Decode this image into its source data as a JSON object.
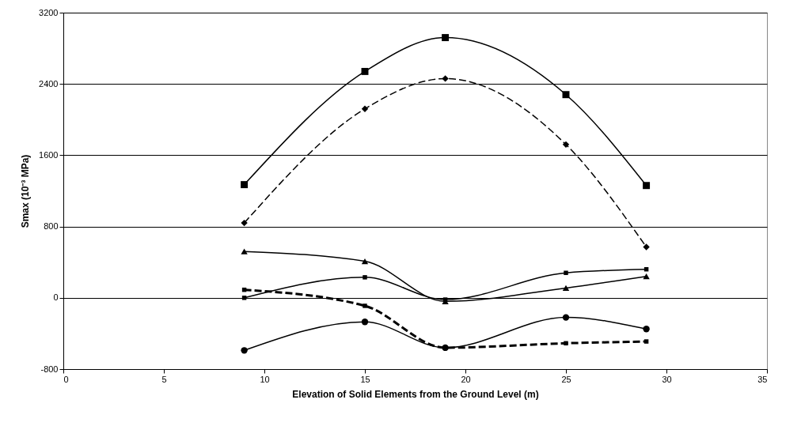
{
  "chart_data": {
    "type": "line",
    "xlabel": "Elevation of Solid Elements from the Ground Level (m)",
    "ylabel": "Smax (10⁻³ MPa)",
    "x": [
      9,
      15,
      19,
      25,
      29
    ],
    "xlim": [
      0,
      35
    ],
    "xticks": [
      0,
      5,
      10,
      15,
      20,
      25,
      30,
      35
    ],
    "ylim": [
      -800,
      3200
    ],
    "yticks": [
      -800,
      0,
      800,
      1600,
      2400,
      3200
    ],
    "grid": "y",
    "series": [
      {
        "color": "#000000",
        "marker": "square",
        "line_style": "solid",
        "values": [
          1270,
          2540,
          2920,
          2280,
          1260
        ]
      },
      {
        "color": "#000000",
        "marker": "diamond",
        "line_style": "dashed",
        "values": [
          840,
          2120,
          2460,
          1720,
          570
        ]
      },
      {
        "color": "#000000",
        "marker": "triangle",
        "line_style": "solid",
        "values": [
          520,
          410,
          -40,
          110,
          240
        ]
      },
      {
        "color": "#000000",
        "marker": "square",
        "line_style": "solid",
        "values": [
          0,
          230,
          -20,
          280,
          320
        ]
      },
      {
        "color": "#000000",
        "marker": "square",
        "line_style": "dashed",
        "values": [
          90,
          -90,
          -560,
          -510,
          -490
        ]
      },
      {
        "color": "#000000",
        "marker": "circle",
        "line_style": "solid",
        "values": [
          -590,
          -270,
          -560,
          -220,
          -350
        ]
      }
    ]
  }
}
